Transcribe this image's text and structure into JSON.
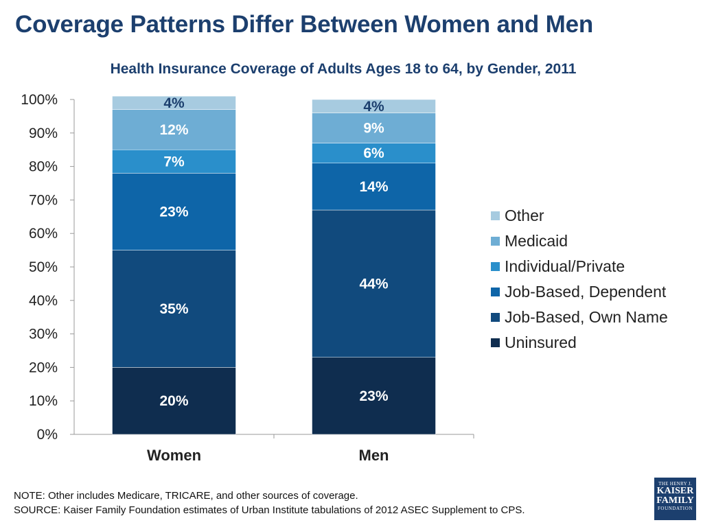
{
  "slide": {
    "title": "Coverage Patterns Differ Between Women and Men"
  },
  "chart_data": {
    "type": "bar",
    "stacked": true,
    "title": "Health Insurance Coverage of Adults Ages 18 to 64, by Gender, 2011",
    "xlabel": "",
    "ylabel": "",
    "ylim": [
      0,
      100
    ],
    "y_ticks": [
      "0%",
      "10%",
      "20%",
      "30%",
      "40%",
      "50%",
      "60%",
      "70%",
      "80%",
      "90%",
      "100%"
    ],
    "categories": [
      "Women",
      "Men"
    ],
    "series": [
      {
        "name": "Uninsured",
        "color": "#0f2d4f",
        "values": [
          20,
          23
        ],
        "labels": [
          "20%",
          "23%"
        ],
        "label_color": "#ffffff"
      },
      {
        "name": "Job-Based, Own Name",
        "color": "#114a7d",
        "values": [
          35,
          44
        ],
        "labels": [
          "35%",
          "44%"
        ],
        "label_color": "#ffffff"
      },
      {
        "name": "Job-Based, Dependent",
        "color": "#0e65a8",
        "values": [
          23,
          14
        ],
        "labels": [
          "23%",
          "14%"
        ],
        "label_color": "#ffffff"
      },
      {
        "name": "Individual/Private",
        "color": "#2a8fcb",
        "values": [
          7,
          6
        ],
        "labels": [
          "7%",
          "6%"
        ],
        "label_color": "#ffffff"
      },
      {
        "name": "Medicaid",
        "color": "#6eadd4",
        "values": [
          12,
          9
        ],
        "labels": [
          "12%",
          "9%"
        ],
        "label_color": "#ffffff"
      },
      {
        "name": "Other",
        "color": "#a7cbe0",
        "values": [
          4,
          4
        ],
        "labels": [
          "4%",
          "4%"
        ],
        "label_color": "#1c3f6e"
      }
    ],
    "legend_position": "right",
    "legend_order": [
      "Other",
      "Medicaid",
      "Individual/Private",
      "Job-Based, Dependent",
      "Job-Based, Own Name",
      "Uninsured"
    ],
    "grid": false
  },
  "footnotes": {
    "note": "NOTE:  Other includes Medicare, TRICARE, and other sources of coverage.",
    "source": "SOURCE:  Kaiser Family Foundation estimates of Urban Institute tabulations of 2012 ASEC Supplement to CPS."
  },
  "logo": {
    "line1": "THE HENRY J.",
    "line2": "KAISER",
    "line3": "FAMILY",
    "line4": "FOUNDATION"
  }
}
